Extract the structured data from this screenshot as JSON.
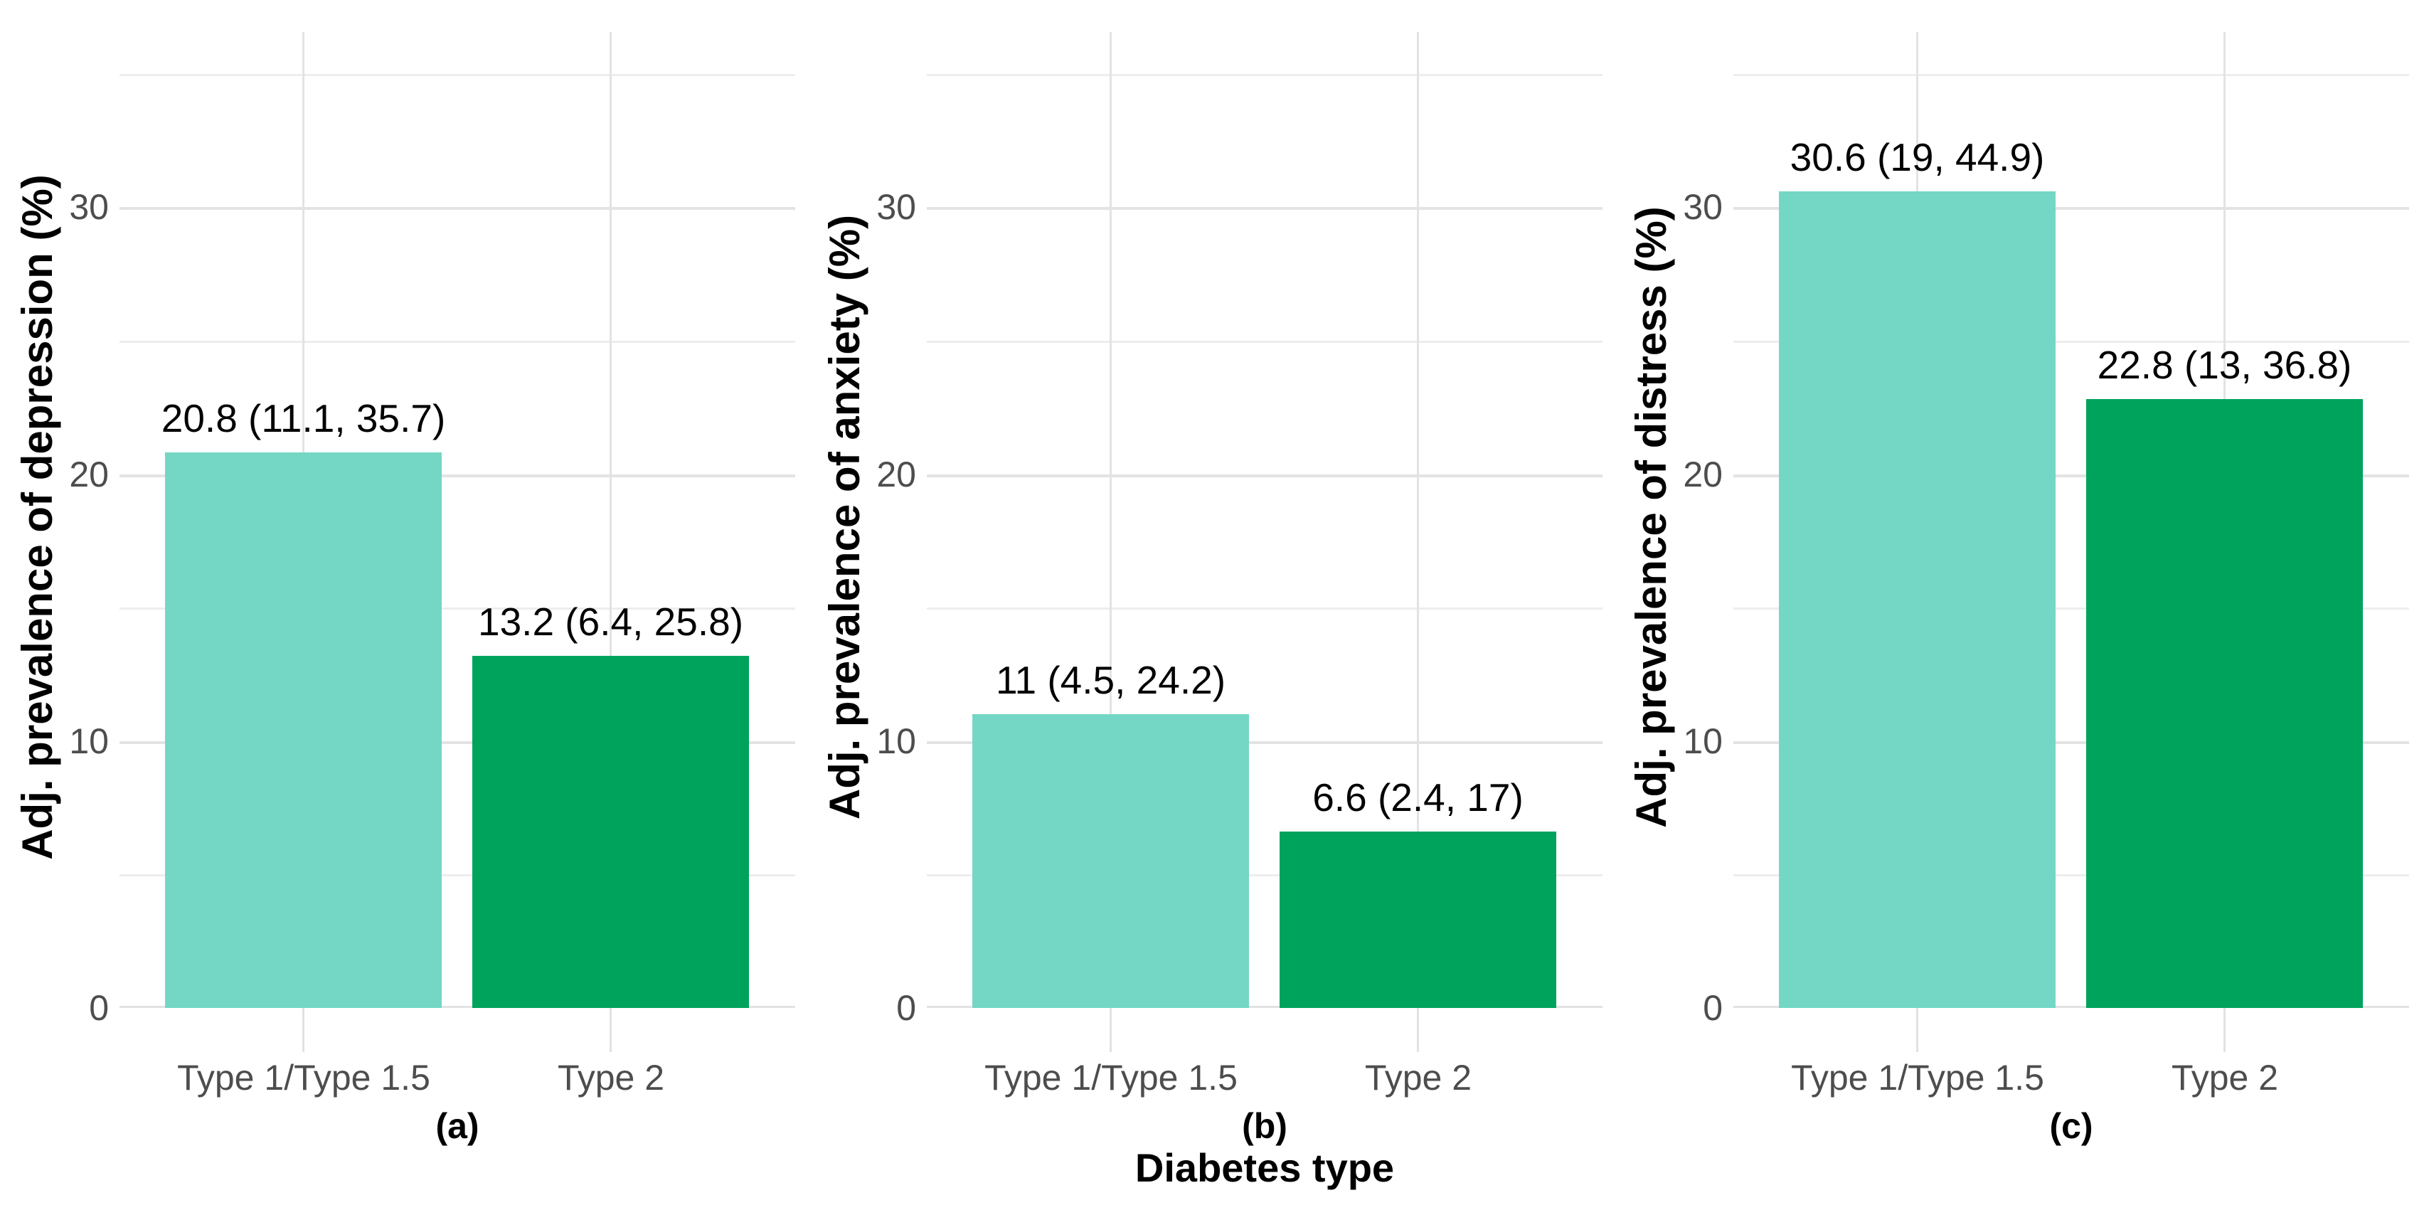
{
  "figure": {
    "x_axis_title": "Diabetes type",
    "colors": {
      "type1_fill": "#74D7C5",
      "type2_fill": "#00A35C",
      "gridline_major": "#E3E3E3",
      "gridline_minor": "#EDEDED",
      "tick_label": "#4d4d4d",
      "text": "#000000",
      "background": "#ffffff"
    }
  },
  "chart_data": [
    {
      "type": "bar",
      "caption": "(a)",
      "ylabel": "Adj. prevalence of depression (%)",
      "xlabel": "Diabetes type",
      "categories": [
        "Type 1/Type 1.5",
        "Type 2"
      ],
      "values": [
        20.8,
        13.2
      ],
      "ci": [
        [
          11.1,
          35.7
        ],
        [
          6.4,
          25.8
        ]
      ],
      "bar_labels": [
        "20.8 (11.1, 35.7)",
        "13.2 (6.4, 25.8)"
      ],
      "yticks": [
        0,
        10,
        20,
        30
      ],
      "ylim": [
        0,
        36.6
      ],
      "grid": true,
      "legend": "none"
    },
    {
      "type": "bar",
      "caption": "(b)",
      "ylabel": "Adj. prevalence of anxiety (%)",
      "xlabel": "Diabetes type",
      "categories": [
        "Type 1/Type 1.5",
        "Type 2"
      ],
      "values": [
        11,
        6.6
      ],
      "ci": [
        [
          4.5,
          24.2
        ],
        [
          2.4,
          17
        ]
      ],
      "bar_labels": [
        "11 (4.5, 24.2)",
        "6.6 (2.4, 17)"
      ],
      "yticks": [
        0,
        10,
        20,
        30
      ],
      "ylim": [
        0,
        36.6
      ],
      "grid": true,
      "legend": "none"
    },
    {
      "type": "bar",
      "caption": "(c)",
      "ylabel": "Adj. prevalence of distress (%)",
      "xlabel": "Diabetes type",
      "categories": [
        "Type 1/Type 1.5",
        "Type 2"
      ],
      "values": [
        30.6,
        22.8
      ],
      "ci": [
        [
          19,
          44.9
        ],
        [
          13,
          36.8
        ]
      ],
      "bar_labels": [
        "30.6 (19, 44.9)",
        "22.8 (13, 36.8)"
      ],
      "yticks": [
        0,
        10,
        20,
        30
      ],
      "ylim": [
        0,
        36.6
      ],
      "grid": true,
      "legend": "none"
    }
  ]
}
